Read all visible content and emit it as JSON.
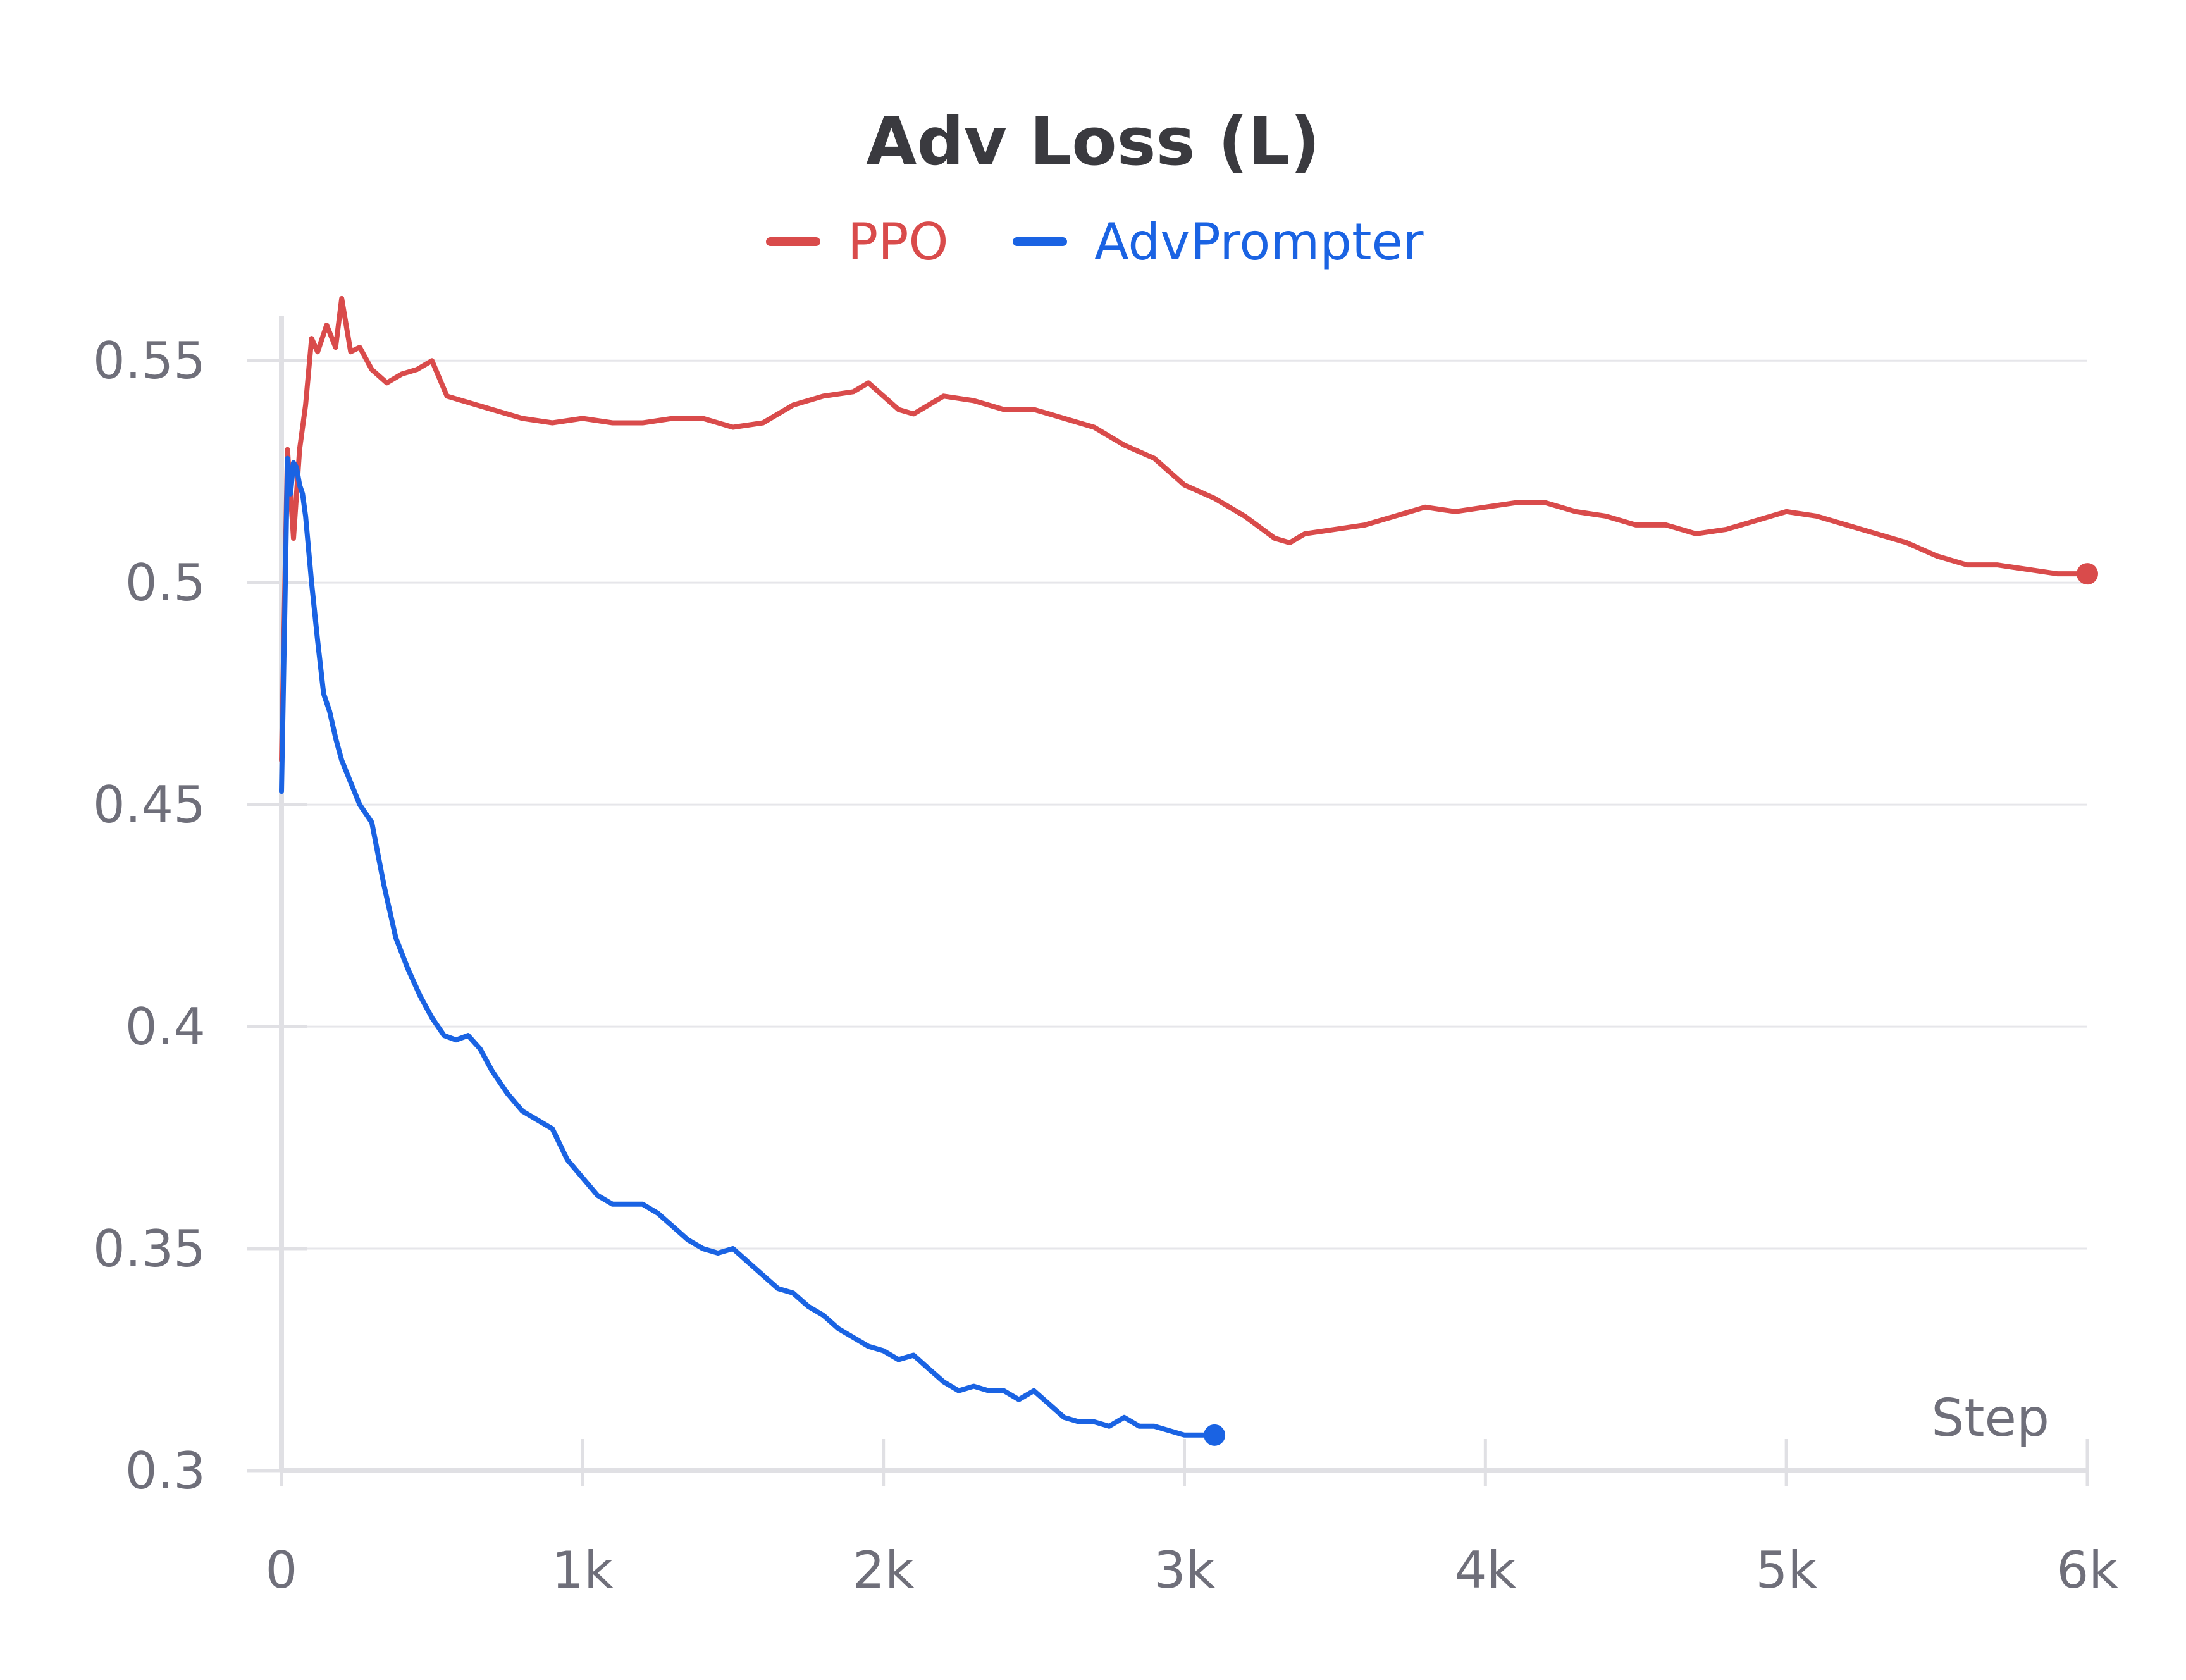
{
  "colors": {
    "ppo": "#d94b4b",
    "advprompter": "#1a63e3",
    "grid": "#e6e6ea",
    "axis": "#e0e0e4",
    "text": "#6f6f7a",
    "title": "#3a3a3f"
  },
  "chart_data": {
    "type": "line",
    "title": "Adv Loss (L)",
    "xlabel": "Step",
    "ylabel": "",
    "xlim": [
      0,
      6000
    ],
    "ylim": [
      0.3,
      0.56
    ],
    "grid": true,
    "legend_position": "top-center",
    "x_ticks": [
      {
        "value": 0,
        "label": "0"
      },
      {
        "value": 1000,
        "label": "1k"
      },
      {
        "value": 2000,
        "label": "2k"
      },
      {
        "value": 3000,
        "label": "3k"
      },
      {
        "value": 4000,
        "label": "4k"
      },
      {
        "value": 5000,
        "label": "5k"
      },
      {
        "value": 6000,
        "label": "6k"
      }
    ],
    "y_ticks": [
      {
        "value": 0.3,
        "label": "0.3"
      },
      {
        "value": 0.35,
        "label": "0.35"
      },
      {
        "value": 0.4,
        "label": "0.4"
      },
      {
        "value": 0.45,
        "label": "0.45"
      },
      {
        "value": 0.5,
        "label": "0.5"
      },
      {
        "value": 0.55,
        "label": "0.55"
      }
    ],
    "series": [
      {
        "name": "PPO",
        "color": "#d94b4b",
        "x": [
          0,
          20,
          40,
          60,
          80,
          100,
          120,
          150,
          180,
          200,
          230,
          260,
          300,
          350,
          400,
          450,
          500,
          550,
          600,
          650,
          700,
          800,
          900,
          1000,
          1100,
          1200,
          1300,
          1400,
          1500,
          1600,
          1700,
          1800,
          1900,
          1950,
          2000,
          2050,
          2100,
          2200,
          2300,
          2400,
          2500,
          2600,
          2700,
          2800,
          2900,
          3000,
          3100,
          3200,
          3300,
          3350,
          3400,
          3500,
          3600,
          3700,
          3800,
          3900,
          4000,
          4100,
          4200,
          4300,
          4400,
          4500,
          4600,
          4700,
          4800,
          4900,
          5000,
          5100,
          5200,
          5300,
          5400,
          5500,
          5600,
          5700,
          5800,
          5900,
          6000
        ],
        "y": [
          0.46,
          0.53,
          0.51,
          0.53,
          0.54,
          0.555,
          0.552,
          0.558,
          0.553,
          0.564,
          0.552,
          0.553,
          0.548,
          0.545,
          0.547,
          0.548,
          0.55,
          0.542,
          0.541,
          0.54,
          0.539,
          0.537,
          0.536,
          0.537,
          0.536,
          0.536,
          0.537,
          0.537,
          0.535,
          0.536,
          0.54,
          0.542,
          0.543,
          0.545,
          0.542,
          0.539,
          0.538,
          0.542,
          0.541,
          0.539,
          0.539,
          0.537,
          0.535,
          0.531,
          0.528,
          0.522,
          0.519,
          0.515,
          0.51,
          0.509,
          0.511,
          0.512,
          0.513,
          0.515,
          0.517,
          0.516,
          0.517,
          0.518,
          0.518,
          0.516,
          0.515,
          0.513,
          0.513,
          0.511,
          0.512,
          0.514,
          0.516,
          0.515,
          0.513,
          0.511,
          0.509,
          0.506,
          0.504,
          0.504,
          0.503,
          0.502,
          0.502
        ]
      },
      {
        "name": "AdvPrompter",
        "color": "#1a63e3",
        "x": [
          0,
          10,
          20,
          30,
          40,
          50,
          60,
          70,
          80,
          100,
          120,
          140,
          160,
          180,
          200,
          230,
          260,
          300,
          340,
          380,
          420,
          460,
          500,
          540,
          580,
          620,
          660,
          700,
          750,
          800,
          850,
          900,
          950,
          1000,
          1050,
          1100,
          1150,
          1200,
          1250,
          1300,
          1350,
          1400,
          1450,
          1500,
          1550,
          1600,
          1650,
          1700,
          1750,
          1800,
          1850,
          1900,
          1950,
          2000,
          2050,
          2100,
          2150,
          2200,
          2250,
          2300,
          2350,
          2400,
          2450,
          2500,
          2550,
          2600,
          2650,
          2700,
          2750,
          2800,
          2850,
          2900,
          2950,
          3000,
          3050,
          3100
        ],
        "y": [
          0.453,
          0.49,
          0.528,
          0.52,
          0.527,
          0.526,
          0.522,
          0.52,
          0.515,
          0.5,
          0.487,
          0.475,
          0.471,
          0.465,
          0.46,
          0.455,
          0.45,
          0.446,
          0.432,
          0.42,
          0.413,
          0.407,
          0.402,
          0.398,
          0.397,
          0.398,
          0.395,
          0.39,
          0.385,
          0.381,
          0.379,
          0.377,
          0.37,
          0.366,
          0.362,
          0.36,
          0.36,
          0.36,
          0.358,
          0.355,
          0.352,
          0.35,
          0.349,
          0.35,
          0.347,
          0.344,
          0.341,
          0.34,
          0.337,
          0.335,
          0.332,
          0.33,
          0.328,
          0.327,
          0.325,
          0.326,
          0.323,
          0.32,
          0.318,
          0.319,
          0.318,
          0.318,
          0.316,
          0.318,
          0.315,
          0.312,
          0.311,
          0.311,
          0.31,
          0.312,
          0.31,
          0.31,
          0.309,
          0.308,
          0.308,
          0.308
        ]
      }
    ]
  }
}
